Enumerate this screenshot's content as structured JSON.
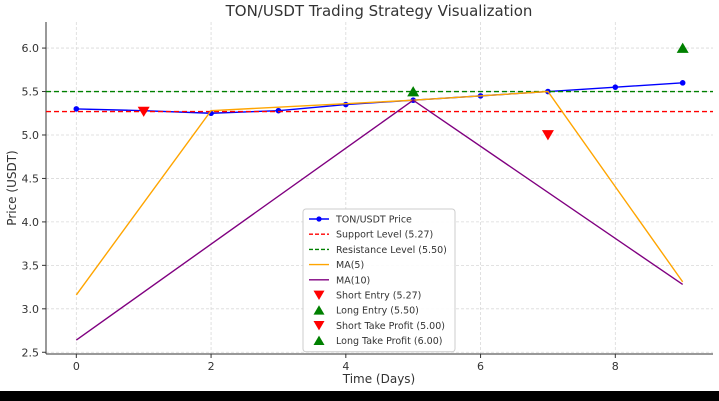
{
  "chart_data": {
    "type": "line",
    "title": "TON/USDT Trading Strategy Visualization",
    "xlabel": "Time (Days)",
    "ylabel": "Price (USDT)",
    "xlim": [
      -0.45,
      9.45
    ],
    "ylim": [
      2.48,
      6.3
    ],
    "x_ticks": [
      0,
      2,
      4,
      6,
      8
    ],
    "y_ticks": [
      2.5,
      3.0,
      3.5,
      4.0,
      4.5,
      5.0,
      5.5,
      6.0
    ],
    "grid": true,
    "legend_position": "lower-center",
    "series": [
      {
        "name": "TON/USDT Price",
        "color": "#0000ff",
        "marker": "circle",
        "x": [
          0,
          1,
          2,
          3,
          4,
          5,
          6,
          7,
          8,
          9
        ],
        "y": [
          5.3,
          5.28,
          5.25,
          5.28,
          5.35,
          5.4,
          5.45,
          5.5,
          5.55,
          5.6
        ]
      },
      {
        "name": "Support Level (5.27)",
        "color": "#ff0000",
        "style": "dashed",
        "hline": 5.27
      },
      {
        "name": "Resistance Level (5.50)",
        "color": "#008000",
        "style": "dashed",
        "hline": 5.5
      },
      {
        "name": "MA(5)",
        "color": "#ffa500",
        "x": [
          0,
          2,
          5,
          7,
          9
        ],
        "y": [
          3.16,
          5.28,
          5.4,
          5.5,
          3.31
        ]
      },
      {
        "name": "MA(10)",
        "color": "#800080",
        "x": [
          0,
          5,
          9
        ],
        "y": [
          2.64,
          5.4,
          3.28
        ]
      },
      {
        "name": "Short Entry (5.27)",
        "color": "#ff0000",
        "marker": "triangle-down",
        "x": [
          1
        ],
        "y": [
          5.27
        ]
      },
      {
        "name": "Long Entry (5.50)",
        "color": "#008000",
        "marker": "triangle-up",
        "x": [
          5
        ],
        "y": [
          5.5
        ]
      },
      {
        "name": "Short Take Profit (5.00)",
        "color": "#ff0000",
        "marker": "triangle-down",
        "x": [
          7
        ],
        "y": [
          5.0
        ]
      },
      {
        "name": "Long Take Profit (6.00)",
        "color": "#008000",
        "marker": "triangle-up",
        "x": [
          9
        ],
        "y": [
          6.0
        ]
      }
    ]
  }
}
